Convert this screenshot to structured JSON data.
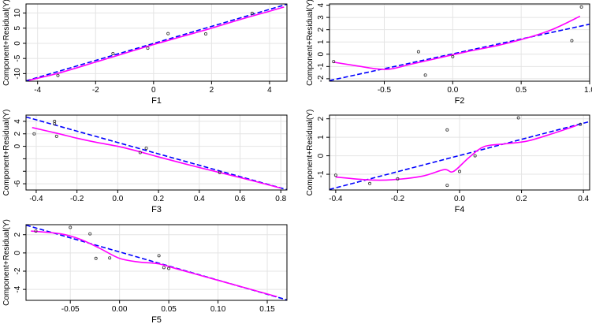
{
  "colors": {
    "smooth": "#ff00ff",
    "fit": "#0000ff",
    "grid": "#e4e4e4",
    "point": "#333333",
    "axis": "#000000"
  },
  "chart_data": [
    {
      "type": "scatter",
      "title": "",
      "xlabel": "F1",
      "ylabel": "Component+Residual(Y)",
      "xlim": [
        -4.4,
        4.6
      ],
      "ylim": [
        -12.5,
        13.0
      ],
      "xticks": [
        -4,
        -2,
        0,
        2,
        4
      ],
      "xtick_labels": [
        "-4",
        "-2",
        "0",
        "2",
        "4"
      ],
      "yticks": [
        -10,
        -5,
        0,
        5,
        10
      ],
      "ytick_labels": [
        "-10",
        "-5",
        "0",
        "5",
        "10"
      ],
      "grid": true,
      "legend": "none",
      "points": [
        [
          -3.3,
          -10.6
        ],
        [
          -1.4,
          -3.4
        ],
        [
          -0.2,
          -1.6
        ],
        [
          0.5,
          3.2
        ],
        [
          1.8,
          3.1
        ],
        [
          3.4,
          9.9
        ]
      ],
      "fit_line": [
        [
          -4.4,
          -12.4
        ],
        [
          4.6,
          12.9
        ]
      ],
      "smooth": [
        [
          -4.3,
          -12.2
        ],
        [
          -3.3,
          -9.9
        ],
        [
          -2.0,
          -6.2
        ],
        [
          -1.0,
          -3.3
        ],
        [
          0.0,
          -0.4
        ],
        [
          1.0,
          2.3
        ],
        [
          2.0,
          5.0
        ],
        [
          3.0,
          7.9
        ],
        [
          4.0,
          10.6
        ],
        [
          4.5,
          12.0
        ]
      ]
    },
    {
      "type": "scatter",
      "title": "",
      "xlabel": "F2",
      "ylabel": "Component+Residual(Y)",
      "xlim": [
        -0.9,
        1.0
      ],
      "ylim": [
        -2.2,
        4.1
      ],
      "xticks": [
        -0.5,
        0.0,
        0.5,
        1.0
      ],
      "xtick_labels": [
        "-0.5",
        "0.0",
        "0.5",
        "1.0"
      ],
      "yticks": [
        -2,
        -1,
        0,
        1,
        2,
        3,
        4
      ],
      "ytick_labels": [
        "-2",
        "-1",
        "0",
        "1",
        "2",
        "3",
        "4"
      ],
      "grid": true,
      "legend": "none",
      "points": [
        [
          -0.87,
          -0.6
        ],
        [
          -0.25,
          0.2
        ],
        [
          -0.2,
          -1.7
        ],
        [
          0.0,
          -0.2
        ],
        [
          0.87,
          1.1
        ],
        [
          0.94,
          3.85
        ]
      ],
      "fit_line": [
        [
          -0.9,
          -2.15
        ],
        [
          1.0,
          2.45
        ]
      ],
      "smooth": [
        [
          -0.87,
          -0.65
        ],
        [
          -0.7,
          -0.95
        ],
        [
          -0.55,
          -1.2
        ],
        [
          -0.45,
          -1.2
        ],
        [
          -0.3,
          -0.8
        ],
        [
          -0.1,
          -0.3
        ],
        [
          0.1,
          0.2
        ],
        [
          0.4,
          0.9
        ],
        [
          0.7,
          1.9
        ],
        [
          0.93,
          3.1
        ]
      ]
    },
    {
      "type": "scatter",
      "title": "",
      "xlabel": "F3",
      "ylabel": "Component+Residual(Y)",
      "xlim": [
        -0.45,
        0.83
      ],
      "ylim": [
        -7.0,
        5.0
      ],
      "xticks": [
        -0.4,
        -0.2,
        0.0,
        0.2,
        0.4,
        0.6,
        0.8
      ],
      "xtick_labels": [
        "-0.4",
        "-0.2",
        "0.0",
        "0.2",
        "0.4",
        "0.6",
        "0.8"
      ],
      "yticks": [
        -6,
        -4,
        -2,
        0,
        2,
        4
      ],
      "ytick_labels": [
        "-6",
        "",
        "",
        "0",
        "2",
        "4"
      ],
      "grid": true,
      "legend": "none",
      "points": [
        [
          -0.41,
          2.0
        ],
        [
          -0.31,
          4.0
        ],
        [
          -0.31,
          3.6
        ],
        [
          -0.3,
          1.6
        ],
        [
          0.11,
          -1.0
        ],
        [
          0.14,
          -0.3
        ],
        [
          0.5,
          -4.2
        ]
      ],
      "fit_line": [
        [
          -0.45,
          4.7
        ],
        [
          0.83,
          -6.95
        ]
      ],
      "smooth": [
        [
          -0.42,
          3.0
        ],
        [
          -0.3,
          2.1
        ],
        [
          -0.2,
          1.3
        ],
        [
          -0.1,
          0.6
        ],
        [
          0.0,
          0.0
        ],
        [
          0.1,
          -0.8
        ],
        [
          0.2,
          -1.7
        ],
        [
          0.4,
          -3.4
        ],
        [
          0.6,
          -5.0
        ],
        [
          0.8,
          -6.7
        ]
      ]
    },
    {
      "type": "scatter",
      "title": "",
      "xlabel": "F4",
      "ylabel": "Component+Residual(Y)",
      "xlim": [
        -0.42,
        0.42
      ],
      "ylim": [
        -1.85,
        2.2
      ],
      "xticks": [
        -0.4,
        -0.2,
        0.0,
        0.2,
        0.4
      ],
      "xtick_labels": [
        "-0.4",
        "-0.2",
        "0.0",
        "0.2",
        "0.4"
      ],
      "yticks": [
        -1,
        0,
        1,
        2
      ],
      "ytick_labels": [
        "-1",
        "0",
        "1",
        "2"
      ],
      "grid": true,
      "legend": "none",
      "points": [
        [
          -0.4,
          -1.05
        ],
        [
          -0.29,
          -1.5
        ],
        [
          -0.2,
          -1.25
        ],
        [
          -0.04,
          1.4
        ],
        [
          -0.04,
          -1.6
        ],
        [
          0.0,
          -0.85
        ],
        [
          0.05,
          0.0
        ],
        [
          0.19,
          2.05
        ],
        [
          0.39,
          1.7
        ]
      ],
      "fit_line": [
        [
          -0.42,
          -1.82
        ],
        [
          0.42,
          1.85
        ]
      ],
      "smooth": [
        [
          -0.4,
          -1.15
        ],
        [
          -0.3,
          -1.3
        ],
        [
          -0.22,
          -1.3
        ],
        [
          -0.12,
          -1.1
        ],
        [
          -0.05,
          -0.75
        ],
        [
          -0.02,
          -0.85
        ],
        [
          0.03,
          -0.1
        ],
        [
          0.08,
          0.5
        ],
        [
          0.15,
          0.65
        ],
        [
          0.22,
          0.8
        ],
        [
          0.3,
          1.2
        ],
        [
          0.38,
          1.65
        ]
      ]
    },
    {
      "type": "scatter",
      "title": "",
      "xlabel": "F5",
      "ylabel": "Component+Residual(Y)",
      "xlim": [
        -0.095,
        0.17
      ],
      "ylim": [
        -5.2,
        3.1
      ],
      "xticks": [
        -0.05,
        0.0,
        0.05,
        0.1,
        0.15
      ],
      "xtick_labels": [
        "-0.05",
        "0.00",
        "0.05",
        "0.10",
        "0.15"
      ],
      "yticks": [
        -4,
        -2,
        0,
        2
      ],
      "ytick_labels": [
        "-4",
        "-2",
        "0",
        "2"
      ],
      "grid": true,
      "legend": "none",
      "points": [
        [
          -0.085,
          2.4
        ],
        [
          -0.05,
          2.8
        ],
        [
          -0.03,
          2.1
        ],
        [
          -0.024,
          -0.6
        ],
        [
          -0.01,
          -0.55
        ],
        [
          0.04,
          -0.3
        ],
        [
          0.045,
          -1.6
        ],
        [
          0.05,
          -1.7
        ]
      ],
      "fit_line": [
        [
          -0.095,
          3.05
        ],
        [
          0.17,
          -5.15
        ]
      ],
      "smooth": [
        [
          -0.09,
          2.4
        ],
        [
          -0.06,
          2.1
        ],
        [
          -0.04,
          1.5
        ],
        [
          -0.02,
          0.5
        ],
        [
          0.0,
          -0.6
        ],
        [
          0.02,
          -1.0
        ],
        [
          0.04,
          -1.2
        ],
        [
          0.06,
          -1.8
        ],
        [
          0.1,
          -3.0
        ],
        [
          0.16,
          -4.8
        ]
      ]
    }
  ]
}
